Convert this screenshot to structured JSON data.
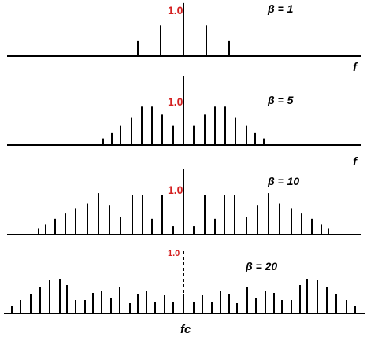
{
  "panels": [
    {
      "beta_label": "β = 1",
      "ref_label": "1.0",
      "axis_label": "f",
      "lines": [
        [
          -58,
          0.39
        ],
        [
          -29,
          0.79
        ],
        [
          0,
          1.37
        ],
        [
          29,
          0.79
        ],
        [
          58,
          0.39
        ]
      ]
    },
    {
      "beta_label": "β = 5",
      "ref_label": "1.0",
      "axis_label": "f",
      "lines": [
        [
          -102,
          0.1
        ],
        [
          -91,
          0.18
        ],
        [
          -80,
          0.29
        ],
        [
          -66,
          0.41
        ],
        [
          -53,
          0.58
        ],
        [
          -40,
          0.58
        ],
        [
          -27,
          0.46
        ],
        [
          -13,
          0.29
        ],
        [
          0,
          1.0
        ],
        [
          13,
          0.29
        ],
        [
          27,
          0.46
        ],
        [
          40,
          0.58
        ],
        [
          53,
          0.58
        ],
        [
          66,
          0.41
        ],
        [
          80,
          0.29
        ],
        [
          91,
          0.18
        ],
        [
          102,
          0.1
        ]
      ]
    },
    {
      "beta_label": "β = 10",
      "ref_label": "1.0",
      "axis_label": "",
      "lines": [
        [
          -184,
          0.09
        ],
        [
          -175,
          0.15
        ],
        [
          -163,
          0.24
        ],
        [
          -150,
          0.32
        ],
        [
          -137,
          0.4
        ],
        [
          -122,
          0.47
        ],
        [
          -108,
          0.63
        ],
        [
          -94,
          0.45
        ],
        [
          -80,
          0.27
        ],
        [
          -65,
          0.6
        ],
        [
          -52,
          0.6
        ],
        [
          -40,
          0.24
        ],
        [
          -27,
          0.6
        ],
        [
          -13,
          0.13
        ],
        [
          0,
          1.0
        ],
        [
          13,
          0.13
        ],
        [
          27,
          0.6
        ],
        [
          40,
          0.24
        ],
        [
          52,
          0.6
        ],
        [
          65,
          0.6
        ],
        [
          80,
          0.27
        ],
        [
          94,
          0.45
        ],
        [
          108,
          0.63
        ],
        [
          122,
          0.47
        ],
        [
          137,
          0.4
        ],
        [
          150,
          0.32
        ],
        [
          163,
          0.24
        ],
        [
          175,
          0.15
        ],
        [
          184,
          0.09
        ]
      ]
    },
    {
      "beta_label": "β = 20",
      "ref_label": "1.0",
      "axis_label": "fc",
      "lines": [
        [
          -218,
          0.09
        ],
        [
          -207,
          0.17
        ],
        [
          -194,
          0.25
        ],
        [
          -182,
          0.34
        ],
        [
          -170,
          0.42
        ],
        [
          -157,
          0.44
        ],
        [
          -148,
          0.36
        ],
        [
          -137,
          0.17
        ],
        [
          -125,
          0.17
        ],
        [
          -115,
          0.26
        ],
        [
          -104,
          0.29
        ],
        [
          -92,
          0.2
        ],
        [
          -81,
          0.34
        ],
        [
          -68,
          0.13
        ],
        [
          -58,
          0.25
        ],
        [
          -47,
          0.29
        ],
        [
          -36,
          0.14
        ],
        [
          -24,
          0.24
        ],
        [
          -13,
          0.15
        ],
        [
          0,
          0.25
        ],
        [
          13,
          0.15
        ],
        [
          24,
          0.24
        ],
        [
          36,
          0.14
        ],
        [
          47,
          0.29
        ],
        [
          58,
          0.25
        ],
        [
          68,
          0.13
        ],
        [
          81,
          0.34
        ],
        [
          92,
          0.2
        ],
        [
          104,
          0.29
        ],
        [
          115,
          0.26
        ],
        [
          125,
          0.17
        ],
        [
          137,
          0.17
        ],
        [
          148,
          0.36
        ],
        [
          157,
          0.44
        ],
        [
          170,
          0.42
        ],
        [
          182,
          0.34
        ],
        [
          194,
          0.25
        ],
        [
          207,
          0.17
        ],
        [
          218,
          0.09
        ]
      ]
    }
  ]
}
